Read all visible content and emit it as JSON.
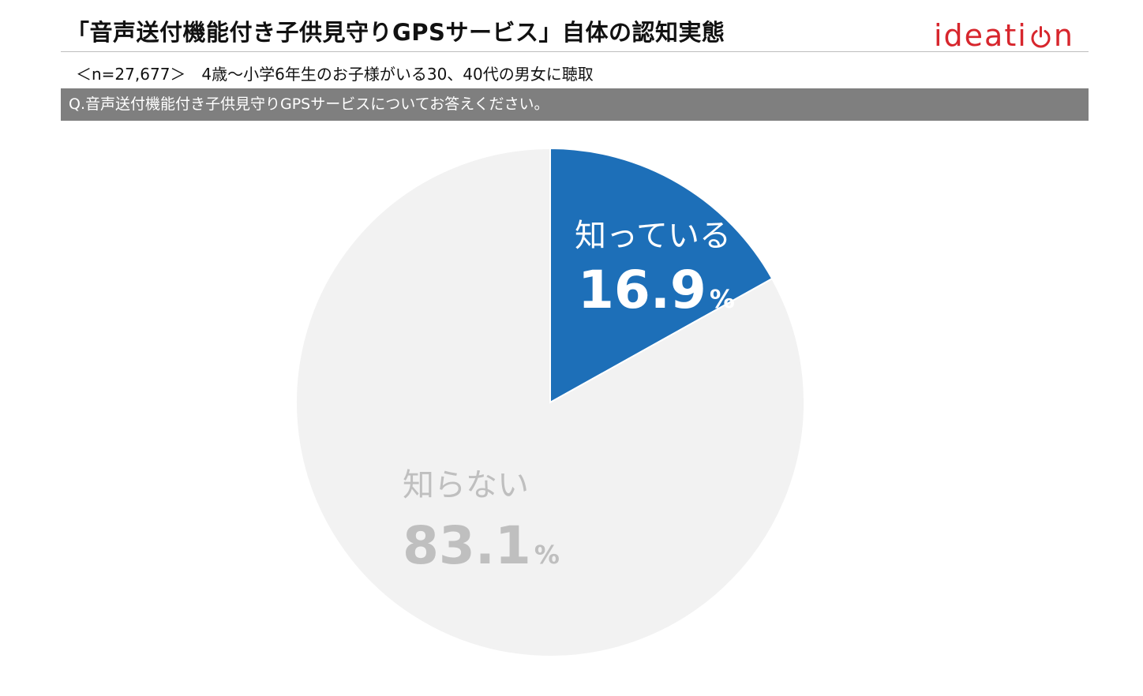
{
  "header": {
    "title": "「音声送付機能付き子供見守りGPSサービス」自体の認知実態",
    "logo_text_left": "ideati",
    "logo_text_right": "n",
    "logo_icon": "power-icon",
    "logo_color": "#d7262d"
  },
  "sample_note": "＜n=27,677＞　4歳～小学6年生のお子様がいる30、40代の男女に聴取",
  "question": "Q.音声送付機能付き子供見守りGPSサービスについてお答えください。",
  "chart_data": {
    "type": "pie",
    "title": "",
    "unit": "%",
    "slices": [
      {
        "label": "知っている",
        "value": 16.9,
        "value_text": "16.9",
        "color": "#1d6fb8",
        "text_color": "#ffffff"
      },
      {
        "label": "知らない",
        "value": 83.1,
        "value_text": "83.1",
        "color": "#f2f2f2",
        "text_color": "#bfbfbf"
      }
    ]
  }
}
